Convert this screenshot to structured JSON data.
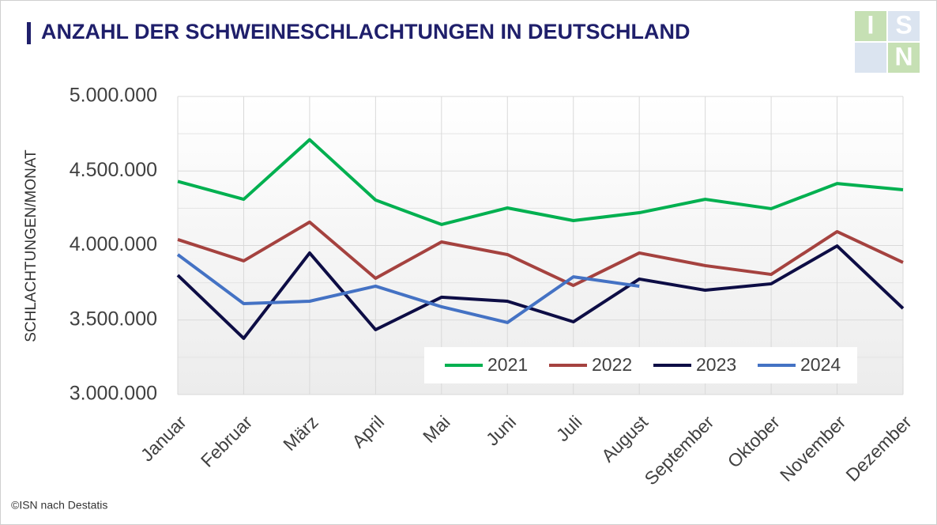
{
  "chart_data": {
    "type": "line",
    "title": "ANZAHL DER SCHWEINESCHLACHTUNGEN IN DEUTSCHLAND",
    "y_label": "SCHLACHTUNGEN/MONAT",
    "source": "©ISN nach Destatis",
    "logo": [
      "I",
      "S",
      "N"
    ],
    "categories": [
      "Januar",
      "Februar",
      "März",
      "April",
      "Mai",
      "Juni",
      "Juli",
      "August",
      "September",
      "Oktober",
      "November",
      "Dezember"
    ],
    "series": [
      {
        "name": "2021",
        "color": "#00b050",
        "values": [
          4430000,
          4310000,
          4710000,
          4305000,
          4141000,
          4252000,
          4167000,
          4220000,
          4310000,
          4247000,
          4416000,
          4374000
        ]
      },
      {
        "name": "2022",
        "color": "#a5423f",
        "values": [
          4040000,
          3897000,
          4157000,
          3780000,
          4024000,
          3939000,
          3732000,
          3950000,
          3865000,
          3806000,
          4093000,
          3886000
        ]
      },
      {
        "name": "2023",
        "color": "#0d0d45",
        "values": [
          3801000,
          3377000,
          3950000,
          3435000,
          3653000,
          3626000,
          3488000,
          3775000,
          3700000,
          3743000,
          3997000,
          3578000
        ]
      },
      {
        "name": "2024",
        "color": "#4472c4",
        "values": [
          3939000,
          3610000,
          3626000,
          3727000,
          3589000,
          3483000,
          3790000,
          3727000,
          null,
          null,
          null,
          null
        ]
      }
    ],
    "ylim": [
      3000000,
      5000000
    ],
    "yticks": [
      {
        "value": 3000000,
        "label": "3.000.000"
      },
      {
        "value": 3500000,
        "label": "3.500.000"
      },
      {
        "value": 4000000,
        "label": "4.000.000"
      },
      {
        "value": 4500000,
        "label": "4.500.000"
      },
      {
        "value": 5000000,
        "label": "5.000.000"
      }
    ],
    "grid": true,
    "legend": "lower right"
  }
}
